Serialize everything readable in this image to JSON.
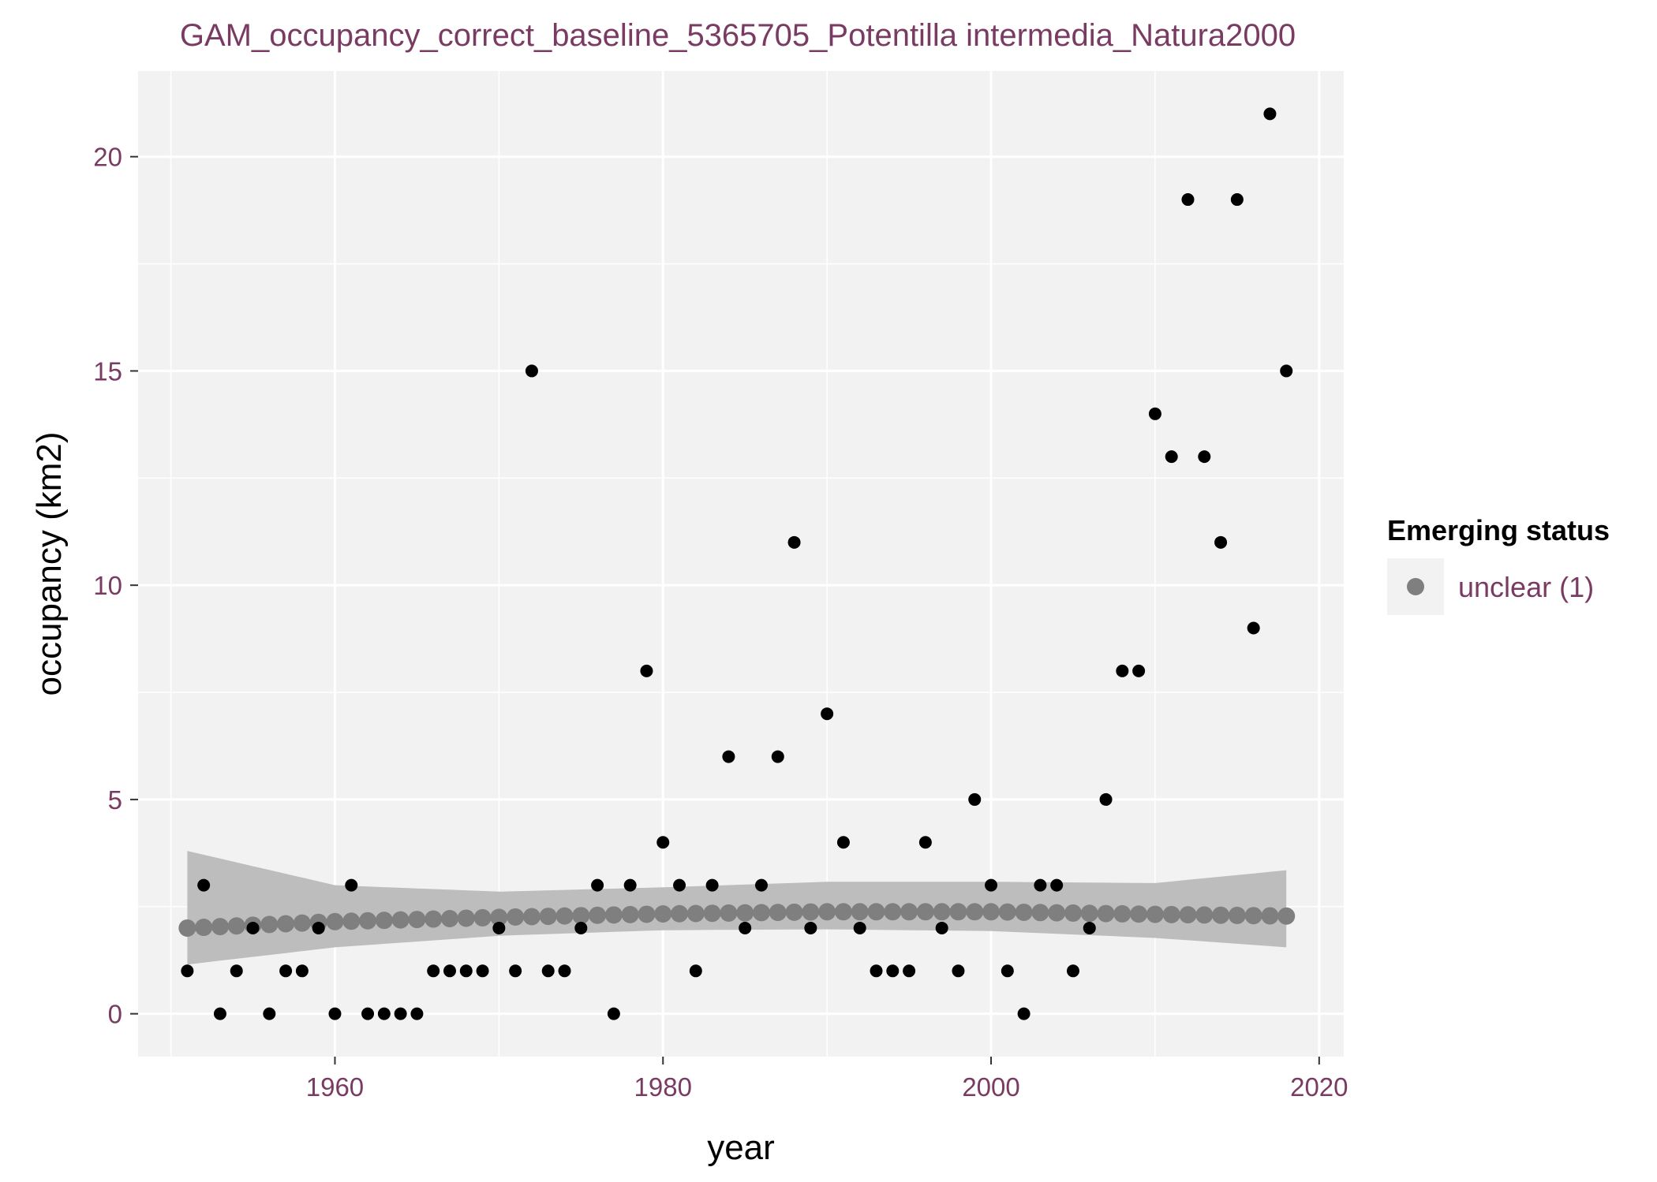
{
  "chart_data": {
    "type": "scatter",
    "title": "GAM_occupancy_correct_baseline_5365705_Potentilla intermedia_Natura2000",
    "xlabel": "year",
    "ylabel": "occupancy (km2)",
    "xlim": [
      1948,
      2021.5
    ],
    "ylim": [
      -1.0,
      22.0
    ],
    "x_ticks": [
      1960,
      1980,
      2000,
      2020
    ],
    "y_ticks": [
      0,
      5,
      10,
      15,
      20
    ],
    "grid": true,
    "legend": {
      "title": "Emerging status",
      "position": "right",
      "entries": [
        {
          "label": "unclear (1)",
          "color": "#7f7f7f"
        }
      ]
    },
    "observed": {
      "color": "#000000",
      "points": [
        [
          1951,
          1
        ],
        [
          1952,
          3
        ],
        [
          1953,
          0
        ],
        [
          1954,
          1
        ],
        [
          1955,
          2
        ],
        [
          1956,
          0
        ],
        [
          1957,
          1
        ],
        [
          1958,
          1
        ],
        [
          1959,
          2
        ],
        [
          1960,
          0
        ],
        [
          1961,
          3
        ],
        [
          1962,
          0
        ],
        [
          1963,
          0
        ],
        [
          1964,
          0
        ],
        [
          1965,
          0
        ],
        [
          1966,
          1
        ],
        [
          1967,
          1
        ],
        [
          1968,
          1
        ],
        [
          1969,
          1
        ],
        [
          1970,
          2
        ],
        [
          1971,
          1
        ],
        [
          1972,
          15
        ],
        [
          1973,
          1
        ],
        [
          1974,
          1
        ],
        [
          1975,
          2
        ],
        [
          1976,
          3
        ],
        [
          1977,
          0
        ],
        [
          1978,
          3
        ],
        [
          1979,
          8
        ],
        [
          1980,
          4
        ],
        [
          1981,
          3
        ],
        [
          1982,
          1
        ],
        [
          1983,
          3
        ],
        [
          1984,
          6
        ],
        [
          1985,
          2
        ],
        [
          1986,
          3
        ],
        [
          1987,
          6
        ],
        [
          1988,
          11
        ],
        [
          1989,
          2
        ],
        [
          1990,
          7
        ],
        [
          1991,
          4
        ],
        [
          1992,
          2
        ],
        [
          1993,
          1
        ],
        [
          1994,
          1
        ],
        [
          1995,
          1
        ],
        [
          1996,
          4
        ],
        [
          1997,
          2
        ],
        [
          1998,
          1
        ],
        [
          1999,
          5
        ],
        [
          2000,
          3
        ],
        [
          2001,
          1
        ],
        [
          2002,
          0
        ],
        [
          2003,
          3
        ],
        [
          2004,
          3
        ],
        [
          2005,
          1
        ],
        [
          2006,
          2
        ],
        [
          2007,
          5
        ],
        [
          2008,
          8
        ],
        [
          2009,
          8
        ],
        [
          2010,
          14
        ],
        [
          2011,
          13
        ],
        [
          2012,
          19
        ],
        [
          2013,
          13
        ],
        [
          2014,
          11
        ],
        [
          2015,
          19
        ],
        [
          2016,
          9
        ],
        [
          2017,
          21
        ],
        [
          2018,
          15
        ]
      ]
    },
    "fitted": {
      "color": "#7f7f7f",
      "band_color": "#bdbdbd",
      "x_start": 1951,
      "x_end": 2018,
      "fit_points": [
        [
          1951,
          2.0
        ],
        [
          1960,
          2.15
        ],
        [
          1970,
          2.25
        ],
        [
          1980,
          2.33
        ],
        [
          1990,
          2.38
        ],
        [
          2000,
          2.38
        ],
        [
          2010,
          2.32
        ],
        [
          2018,
          2.28
        ]
      ],
      "lower_points": [
        [
          1951,
          1.15
        ],
        [
          1960,
          1.55
        ],
        [
          1970,
          1.82
        ],
        [
          1980,
          1.95
        ],
        [
          1990,
          1.97
        ],
        [
          2000,
          1.93
        ],
        [
          2010,
          1.77
        ],
        [
          2018,
          1.55
        ]
      ],
      "upper_points": [
        [
          1951,
          3.8
        ],
        [
          1960,
          3.0
        ],
        [
          1970,
          2.85
        ],
        [
          1980,
          2.95
        ],
        [
          1990,
          3.08
        ],
        [
          2000,
          3.08
        ],
        [
          2010,
          3.05
        ],
        [
          2018,
          3.35
        ]
      ]
    }
  }
}
